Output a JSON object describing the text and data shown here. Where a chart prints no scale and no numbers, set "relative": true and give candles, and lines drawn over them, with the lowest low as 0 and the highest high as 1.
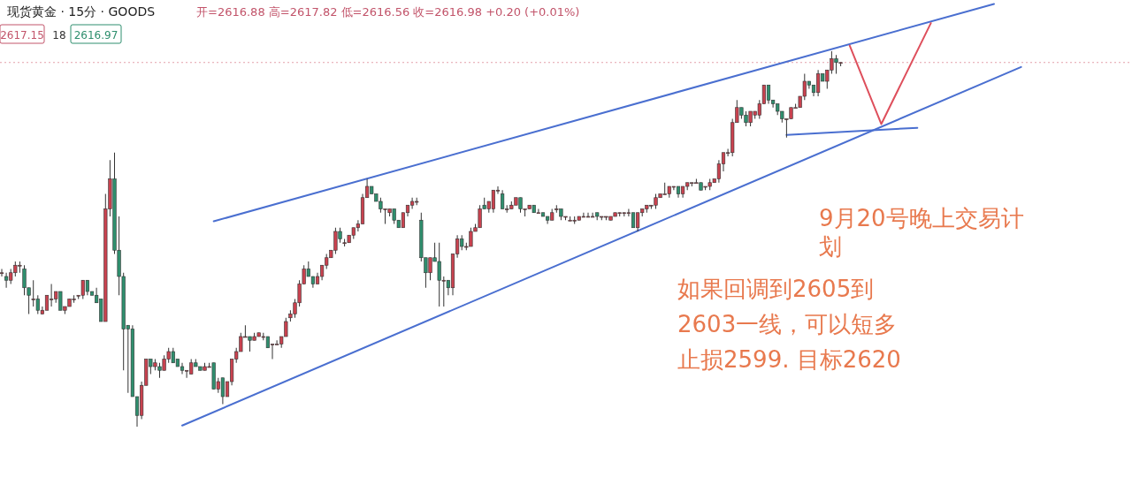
{
  "chart_data": {
    "type": "candlestick",
    "title": "现货黄金 · 15分 · GOODS",
    "subtitle": "开=2616.88 高=2617.82 低=2616.56 收=2616.98 +0.20 (+0.01%)",
    "annotations": [
      "2617.15",
      "18",
      "2616.97",
      "9月20号晚上交易计划",
      "如果回调到2605到2603一线，可以短多止损2599. 目标2620"
    ],
    "relative": true,
    "colors": [
      "#c9424f",
      "#2f8f6e",
      "#c9424f",
      "#c9424f",
      "#c9424f",
      "#2f8f6e",
      "#2f8f6e",
      "#c9424f",
      "#2f8f6e",
      "#c9424f",
      "#c9424f",
      "#c9424f",
      "#c9424f",
      "#2f8f6e",
      "#c9424f",
      "#c9424f",
      "#c9424f",
      "#c9424f",
      "#c9424f",
      "#2f8f6e",
      "#2f8f6e",
      "#2f8f6e",
      "#2f8f6e",
      "#c9424f",
      "#c9424f",
      "#2f8f6e",
      "#2f8f6e",
      "#2f8f6e",
      "#2f8f6e",
      "#2f8f6e",
      "#2f8f6e",
      "#c9424f",
      "#c9424f",
      "#2f8f6e",
      "#c9424f",
      "#2f8f6e",
      "#c9424f",
      "#c9424f",
      "#2f8f6e",
      "#2f8f6e",
      "#2f8f6e",
      "#c9424f",
      "#c9424f",
      "#2f8f6e",
      "#2f8f6e",
      "#c9424f",
      "#c9424f",
      "#2f8f6e",
      "#c9424f",
      "#2f8f6e",
      "#c9424f",
      "#c9424f",
      "#c9424f",
      "#c9424f",
      "#c9424f",
      "#2f8f6e",
      "#c9424f",
      "#c9424f",
      "#c9424f",
      "#2f8f6e",
      "#c9424f",
      "#c9424f",
      "#c9424f",
      "#c9424f",
      "#c9424f",
      "#c9424f",
      "#c9424f",
      "#c9424f",
      "#2f8f6e",
      "#2f8f6e",
      "#c9424f",
      "#c9424f",
      "#c9424f",
      "#c9424f",
      "#c9424f",
      "#2f8f6e",
      "#c9424f",
      "#c9424f",
      "#c9424f",
      "#c9424f",
      "#c9424f",
      "#c9424f",
      "#2f8f6e",
      "#2f8f6e",
      "#2f8f6e",
      "#c9424f",
      "#c9424f",
      "#2f8f6e",
      "#2f8f6e",
      "#c9424f",
      "#c9424f",
      "#c9424f",
      "#c9424f",
      "#2f8f6e",
      "#2f8f6e",
      "#c9424f",
      "#2f8f6e",
      "#2f8f6e",
      "#c9424f",
      "#2f8f6e",
      "#c9424f",
      "#c9424f",
      "#2f8f6e",
      "#c9424f",
      "#c9424f",
      "#c9424f",
      "#c9424f",
      "#2f8f6e",
      "#c9424f",
      "#c9424f",
      "#c9424f",
      "#2f8f6e",
      "#c9424f",
      "#c9424f",
      "#c9424f",
      "#2f8f6e",
      "#c9424f",
      "#c9424f",
      "#2f8f6e",
      "#c9424f",
      "#2f8f6e",
      "#2f8f6e",
      "#c9424f",
      "#c9424f",
      "#2f8f6e",
      "#c9424f",
      "#c9424f",
      "#c9424f",
      "#c9424f",
      "#c9424f",
      "#c9424f",
      "#c9424f",
      "#2f8f6e",
      "#c9424f",
      "#c9424f",
      "#c9424f",
      "#c9424f",
      "#c9424f",
      "#c9424f",
      "#c9424f",
      "#2f8f6e",
      "#c9424f",
      "#c9424f",
      "#c9424f",
      "#c9424f",
      "#c9424f",
      "#c9424f",
      "#c9424f",
      "#c9424f",
      "#c9424f",
      "#2f8f6e",
      "#c9424f",
      "#c9424f",
      "#c9424f",
      "#c9424f",
      "#2f8f6e",
      "#c9424f",
      "#c9424f",
      "#c9424f",
      "#c9424f",
      "#c9424f",
      "#c9424f",
      "#c9424f",
      "#c9424f",
      "#2f8f6e",
      "#2f8f6e",
      "#c9424f",
      "#c9424f",
      "#c9424f",
      "#c9424f",
      "#2f8f6e",
      "#2f8f6e",
      "#2f8f6e",
      "#2f8f6e",
      "#c9424f",
      "#c9424f",
      "#c9424f",
      "#c9424f",
      "#c9424f",
      "#2f8f6e",
      "#2f8f6e",
      "#c9424f",
      "#2f8f6e",
      "#c9424f",
      "#c9424f",
      "#2f8f6e",
      "#c9424f",
      null,
      null,
      null,
      null,
      null,
      null,
      null,
      null,
      null,
      null,
      null,
      null,
      null,
      null,
      null,
      null,
      null,
      null,
      null,
      null,
      null,
      null,
      null,
      null,
      null,
      null,
      null,
      null,
      null,
      null,
      null,
      null,
      null,
      null,
      null,
      null,
      null,
      null,
      null,
      null,
      null
    ],
    "categories": [
      null,
      null,
      null,
      null,
      null,
      null,
      null,
      null,
      null,
      null,
      null,
      null,
      null,
      null,
      null,
      null,
      null,
      null,
      null,
      null,
      null,
      null,
      null,
      null,
      null,
      null,
      null,
      null,
      null,
      null,
      null,
      null,
      null,
      null,
      null,
      null,
      null,
      null,
      null,
      null,
      null,
      null,
      null,
      null,
      null,
      null,
      null,
      null,
      null,
      null,
      null,
      null,
      null,
      null,
      null,
      null,
      null,
      null,
      null,
      null,
      null,
      null,
      null,
      null,
      null,
      null,
      null,
      null,
      null,
      null,
      null,
      null,
      null,
      null,
      null,
      null,
      null,
      null,
      null,
      null,
      null,
      null,
      null,
      null,
      null,
      null,
      null,
      null,
      null,
      null,
      null,
      null,
      null,
      null,
      null,
      null,
      null,
      null,
      null,
      null,
      null,
      null,
      null,
      null,
      null,
      null,
      null,
      null,
      null,
      null,
      null,
      null,
      null,
      null,
      null,
      null,
      null,
      null,
      null,
      null,
      null,
      null,
      null,
      null,
      null,
      null,
      null,
      null,
      null,
      null,
      null,
      null,
      null,
      null,
      null,
      null,
      null,
      null,
      null,
      null,
      null,
      null,
      null,
      null,
      null,
      null,
      null,
      null,
      null,
      null,
      null,
      null,
      null,
      null,
      null,
      null,
      null,
      null,
      null,
      null,
      null,
      null,
      null,
      null,
      null,
      null,
      null,
      null,
      null,
      null,
      null,
      null,
      null,
      null,
      null,
      null,
      null,
      null,
      null,
      null,
      null,
      null,
      null,
      null,
      null,
      null,
      null,
      null,
      null,
      null,
      null,
      null,
      null,
      null,
      null,
      null,
      null,
      null,
      null,
      null,
      null,
      null,
      null,
      null,
      null,
      null,
      null,
      null,
      null,
      null,
      null,
      null,
      null,
      null,
      null,
      null,
      null,
      null,
      null,
      null,
      null,
      null,
      null,
      null,
      null,
      null,
      null,
      null
    ],
    "ohlc": [
      [
        0.41,
        0.42,
        0.4,
        0.41
      ],
      [
        0.4,
        0.41,
        0.37,
        0.39
      ],
      [
        0.39,
        0.42,
        0.38,
        0.41
      ],
      [
        0.41,
        0.44,
        0.4,
        0.43
      ],
      [
        0.43,
        0.44,
        0.41,
        0.43
      ],
      [
        0.42,
        0.43,
        0.35,
        0.37
      ],
      [
        0.37,
        0.37,
        0.3,
        0.35
      ],
      [
        0.34,
        0.39,
        0.32,
        0.34
      ],
      [
        0.34,
        0.35,
        0.3,
        0.31
      ],
      [
        0.3,
        0.32,
        0.3,
        0.31
      ],
      [
        0.31,
        0.35,
        0.31,
        0.35
      ],
      [
        0.34,
        0.38,
        0.32,
        0.34
      ],
      [
        0.34,
        0.36,
        0.33,
        0.36
      ],
      [
        0.36,
        0.36,
        0.31,
        0.31
      ],
      [
        0.31,
        0.32,
        0.3,
        0.32
      ],
      [
        0.32,
        0.34,
        0.32,
        0.34
      ],
      [
        0.34,
        0.35,
        0.33,
        0.34
      ],
      [
        0.35,
        0.35,
        0.34,
        0.35
      ],
      [
        0.35,
        0.39,
        0.34,
        0.39
      ],
      [
        0.39,
        0.39,
        0.35,
        0.36
      ],
      [
        0.36,
        0.36,
        0.35,
        0.35
      ],
      [
        0.35,
        0.37,
        0.33,
        0.33
      ],
      [
        0.34,
        0.34,
        0.28,
        0.28
      ],
      [
        0.28,
        0.62,
        0.28,
        0.58
      ],
      [
        0.58,
        0.71,
        0.56,
        0.66
      ],
      [
        0.66,
        0.73,
        0.46,
        0.47
      ],
      [
        0.47,
        0.56,
        0.35,
        0.4
      ],
      [
        0.4,
        0.41,
        0.15,
        0.26
      ],
      [
        0.27,
        0.27,
        0.09,
        0.26
      ],
      [
        0.26,
        0.27,
        0.08,
        0.08
      ],
      [
        0.08,
        0.08,
        0.0,
        0.03
      ],
      [
        0.03,
        0.12,
        0.02,
        0.11
      ],
      [
        0.11,
        0.18,
        0.11,
        0.18
      ],
      [
        0.18,
        0.18,
        0.14,
        0.16
      ],
      [
        0.16,
        0.18,
        0.15,
        0.17
      ],
      [
        0.16,
        0.17,
        0.13,
        0.15
      ],
      [
        0.15,
        0.19,
        0.15,
        0.18
      ],
      [
        0.18,
        0.21,
        0.17,
        0.2
      ],
      [
        0.2,
        0.21,
        0.17,
        0.17
      ],
      [
        0.18,
        0.18,
        0.16,
        0.16
      ],
      [
        0.16,
        0.17,
        0.14,
        0.15
      ],
      [
        0.15,
        0.15,
        0.13,
        0.15
      ],
      [
        0.14,
        0.18,
        0.14,
        0.17
      ],
      [
        0.17,
        0.18,
        0.16,
        0.16
      ],
      [
        0.16,
        0.16,
        0.15,
        0.15
      ],
      [
        0.15,
        0.17,
        0.15,
        0.16
      ],
      [
        0.16,
        0.17,
        0.16,
        0.16
      ],
      [
        0.17,
        0.17,
        0.1,
        0.1
      ],
      [
        0.1,
        0.13,
        0.09,
        0.12
      ],
      [
        0.13,
        0.13,
        0.06,
        0.08
      ],
      [
        0.08,
        0.12,
        0.08,
        0.12
      ],
      [
        0.12,
        0.18,
        0.11,
        0.18
      ],
      [
        0.18,
        0.21,
        0.17,
        0.2
      ],
      [
        0.2,
        0.25,
        0.2,
        0.24
      ],
      [
        0.24,
        0.27,
        0.24,
        0.24
      ],
      [
        0.24,
        0.24,
        0.2,
        0.23
      ],
      [
        0.23,
        0.25,
        0.23,
        0.24
      ],
      [
        0.24,
        0.25,
        0.24,
        0.25
      ],
      [
        0.24,
        0.25,
        0.23,
        0.24
      ],
      [
        0.24,
        0.24,
        0.21,
        0.21
      ],
      [
        0.22,
        0.22,
        0.18,
        0.22
      ],
      [
        0.22,
        0.23,
        0.22,
        0.22
      ],
      [
        0.22,
        0.24,
        0.21,
        0.24
      ],
      [
        0.24,
        0.29,
        0.24,
        0.28
      ],
      [
        0.29,
        0.31,
        0.28,
        0.3
      ],
      [
        0.3,
        0.34,
        0.29,
        0.33
      ],
      [
        0.33,
        0.39,
        0.32,
        0.38
      ],
      [
        0.38,
        0.43,
        0.38,
        0.42
      ],
      [
        0.42,
        0.44,
        0.4,
        0.4
      ],
      [
        0.4,
        0.4,
        0.37,
        0.38
      ],
      [
        0.38,
        0.41,
        0.38,
        0.4
      ],
      [
        0.4,
        0.43,
        0.39,
        0.43
      ],
      [
        0.43,
        0.46,
        0.42,
        0.45
      ],
      [
        0.45,
        0.47,
        0.45,
        0.47
      ],
      [
        0.47,
        0.53,
        0.46,
        0.52
      ],
      [
        0.52,
        0.53,
        0.49,
        0.5
      ],
      [
        0.49,
        0.5,
        0.48,
        0.49
      ],
      [
        0.49,
        0.51,
        0.49,
        0.51
      ],
      [
        0.51,
        0.53,
        0.5,
        0.53
      ],
      [
        0.53,
        0.55,
        0.52,
        0.54
      ],
      [
        0.54,
        0.62,
        0.54,
        0.61
      ],
      [
        0.61,
        0.66,
        0.61,
        0.64
      ],
      [
        0.64,
        0.64,
        0.62,
        0.62
      ],
      [
        0.62,
        0.62,
        0.6,
        0.6
      ],
      [
        0.6,
        0.61,
        0.57,
        0.58
      ],
      [
        0.58,
        0.58,
        0.54,
        0.58
      ],
      [
        0.57,
        0.58,
        0.56,
        0.58
      ],
      [
        0.58,
        0.58,
        0.54,
        0.55
      ],
      [
        0.55,
        0.55,
        0.53,
        0.53
      ],
      [
        0.53,
        0.57,
        0.53,
        0.57
      ],
      [
        0.57,
        0.59,
        0.56,
        0.59
      ],
      [
        0.59,
        0.61,
        0.58,
        0.6
      ],
      [
        0.6,
        0.61,
        0.59,
        0.6
      ],
      [
        0.55,
        0.57,
        0.44,
        0.45
      ],
      [
        0.45,
        0.45,
        0.37,
        0.41
      ],
      [
        0.41,
        0.45,
        0.39,
        0.45
      ],
      [
        0.45,
        0.49,
        0.44,
        0.44
      ],
      [
        0.44,
        0.49,
        0.32,
        0.39
      ],
      [
        0.39,
        0.4,
        0.32,
        0.39
      ],
      [
        0.39,
        0.39,
        0.35,
        0.37
      ],
      [
        0.37,
        0.46,
        0.35,
        0.46
      ],
      [
        0.46,
        0.51,
        0.45,
        0.5
      ],
      [
        0.5,
        0.51,
        0.47,
        0.48
      ],
      [
        0.48,
        0.49,
        0.47,
        0.48
      ],
      [
        0.48,
        0.53,
        0.48,
        0.52
      ],
      [
        0.52,
        0.54,
        0.52,
        0.53
      ],
      [
        0.53,
        0.59,
        0.53,
        0.58
      ],
      [
        0.59,
        0.61,
        0.58,
        0.58
      ],
      [
        0.58,
        0.6,
        0.57,
        0.6
      ],
      [
        0.58,
        0.63,
        0.57,
        0.63
      ],
      [
        0.63,
        0.64,
        0.62,
        0.63
      ],
      [
        0.62,
        0.63,
        0.58,
        0.58
      ],
      [
        0.58,
        0.59,
        0.57,
        0.58
      ],
      [
        0.58,
        0.6,
        0.58,
        0.59
      ],
      [
        0.59,
        0.61,
        0.59,
        0.61
      ],
      [
        0.61,
        0.61,
        0.57,
        0.58
      ],
      [
        0.58,
        0.58,
        0.56,
        0.58
      ],
      [
        0.58,
        0.59,
        0.58,
        0.59
      ],
      [
        0.59,
        0.59,
        0.57,
        0.57
      ],
      [
        0.57,
        0.58,
        0.57,
        0.57
      ],
      [
        0.57,
        0.57,
        0.56,
        0.56
      ],
      [
        0.56,
        0.56,
        0.54,
        0.55
      ],
      [
        0.55,
        0.58,
        0.55,
        0.57
      ],
      [
        0.58,
        0.59,
        0.57,
        0.58
      ],
      [
        0.58,
        0.58,
        0.55,
        0.56
      ],
      [
        0.56,
        0.56,
        0.55,
        0.56
      ],
      [
        0.55,
        0.56,
        0.55,
        0.55
      ],
      [
        0.55,
        0.56,
        0.54,
        0.55
      ],
      [
        0.55,
        0.56,
        0.55,
        0.56
      ],
      [
        0.56,
        0.57,
        0.56,
        0.56
      ],
      [
        0.56,
        0.57,
        0.56,
        0.56
      ],
      [
        0.56,
        0.57,
        0.56,
        0.56
      ],
      [
        0.57,
        0.57,
        0.55,
        0.56
      ],
      [
        0.56,
        0.56,
        0.55,
        0.56
      ],
      [
        0.56,
        0.56,
        0.55,
        0.56
      ],
      [
        0.55,
        0.56,
        0.55,
        0.56
      ],
      [
        0.56,
        0.57,
        0.56,
        0.57
      ],
      [
        0.57,
        0.57,
        0.56,
        0.57
      ],
      [
        0.57,
        0.57,
        0.56,
        0.57
      ],
      [
        0.57,
        0.58,
        0.56,
        0.57
      ],
      [
        0.57,
        0.57,
        0.53,
        0.53
      ],
      [
        0.53,
        0.57,
        0.52,
        0.57
      ],
      [
        0.57,
        0.58,
        0.56,
        0.58
      ],
      [
        0.58,
        0.59,
        0.57,
        0.59
      ],
      [
        0.59,
        0.59,
        0.58,
        0.59
      ],
      [
        0.59,
        0.62,
        0.58,
        0.61
      ],
      [
        0.61,
        0.62,
        0.61,
        0.62
      ],
      [
        0.62,
        0.65,
        0.62,
        0.62
      ],
      [
        0.62,
        0.64,
        0.61,
        0.64
      ],
      [
        0.64,
        0.64,
        0.63,
        0.64
      ],
      [
        0.64,
        0.64,
        0.61,
        0.62
      ],
      [
        0.62,
        0.64,
        0.61,
        0.64
      ],
      [
        0.64,
        0.65,
        0.63,
        0.65
      ],
      [
        0.65,
        0.65,
        0.64,
        0.65
      ],
      [
        0.65,
        0.66,
        0.65,
        0.65
      ],
      [
        0.65,
        0.65,
        0.63,
        0.63
      ],
      [
        0.64,
        0.64,
        0.63,
        0.64
      ],
      [
        0.64,
        0.66,
        0.63,
        0.65
      ],
      [
        0.65,
        0.66,
        0.65,
        0.66
      ],
      [
        0.66,
        0.71,
        0.65,
        0.7
      ],
      [
        0.7,
        0.73,
        0.68,
        0.73
      ],
      [
        0.73,
        0.74,
        0.72,
        0.73
      ],
      [
        0.73,
        0.82,
        0.72,
        0.81
      ],
      [
        0.81,
        0.87,
        0.81,
        0.85
      ],
      [
        0.85,
        0.85,
        0.82,
        0.83
      ],
      [
        0.83,
        0.84,
        0.8,
        0.81
      ],
      [
        0.81,
        0.84,
        0.8,
        0.84
      ],
      [
        0.83,
        0.84,
        0.82,
        0.84
      ],
      [
        0.83,
        0.87,
        0.82,
        0.86
      ],
      [
        0.86,
        0.91,
        0.86,
        0.91
      ],
      [
        0.91,
        0.91,
        0.86,
        0.87
      ],
      [
        0.87,
        0.87,
        0.85,
        0.86
      ],
      [
        0.86,
        0.86,
        0.83,
        0.84
      ],
      [
        0.84,
        0.84,
        0.81,
        0.82
      ],
      [
        0.82,
        0.82,
        0.77,
        0.82
      ],
      [
        0.82,
        0.85,
        0.82,
        0.85
      ],
      [
        0.85,
        0.86,
        0.85,
        0.85
      ],
      [
        0.85,
        0.88,
        0.85,
        0.88
      ],
      [
        0.88,
        0.94,
        0.87,
        0.92
      ],
      [
        0.92,
        0.92,
        0.9,
        0.91
      ],
      [
        0.91,
        0.91,
        0.88,
        0.89
      ],
      [
        0.89,
        0.95,
        0.88,
        0.94
      ],
      [
        0.94,
        0.94,
        0.92,
        0.92
      ],
      [
        0.92,
        0.95,
        0.9,
        0.95
      ],
      [
        0.95,
        1.0,
        0.94,
        0.98
      ],
      [
        0.98,
        0.99,
        0.94,
        0.97
      ],
      [
        0.97,
        0.97,
        0.96,
        0.97
      ],
      null,
      null,
      null,
      null,
      null,
      null,
      null,
      null,
      null,
      null,
      null,
      null,
      null,
      null,
      null,
      null,
      null,
      null,
      null,
      null,
      null,
      null,
      null,
      null,
      null,
      null,
      null,
      null,
      null,
      null,
      null,
      null,
      null,
      null,
      null,
      null,
      null,
      null,
      null,
      null,
      null
    ],
    "series": [
      {
        "type": "line",
        "color": "#4a6fd0",
        "values": [
          null,
          null,
          null,
          null,
          null,
          null,
          null,
          null,
          null,
          null,
          null,
          null,
          null,
          null,
          null,
          null,
          null,
          null,
          null,
          null,
          null,
          null,
          null,
          null,
          null,
          null,
          null,
          null,
          null,
          null,
          null,
          null,
          null,
          null,
          null,
          null,
          null,
          null,
          null,
          null,
          null,
          null,
          null,
          null,
          null,
          null,
          null,
          0.547,
          null,
          null,
          null,
          null,
          null,
          null,
          null,
          null,
          null,
          null,
          null,
          null,
          null,
          null,
          null,
          null,
          null,
          null,
          null,
          null,
          null,
          null,
          null,
          null,
          null,
          null,
          null,
          null,
          null,
          null,
          null,
          null,
          null,
          null,
          null,
          null,
          null,
          null,
          null,
          null,
          null,
          null,
          null,
          null,
          null,
          null,
          null,
          null,
          null,
          null,
          null,
          null,
          null,
          null,
          null,
          null,
          null,
          null,
          null,
          null,
          null,
          null,
          null,
          null,
          null,
          null,
          null,
          null,
          null,
          null,
          null,
          null,
          null,
          null,
          null,
          null,
          null,
          null,
          null,
          null,
          null,
          null,
          null,
          null,
          null,
          null,
          null,
          null,
          null,
          null,
          null,
          null,
          null,
          null,
          null,
          null,
          null,
          null,
          null,
          null,
          null,
          null,
          null,
          null,
          null,
          null,
          null,
          null,
          null,
          null,
          null,
          null,
          null,
          null,
          null,
          null,
          null,
          null,
          null,
          null,
          null,
          null,
          null,
          null,
          null,
          null,
          null,
          null,
          null,
          null,
          null,
          null,
          null,
          null,
          null,
          null,
          null,
          null,
          null,
          null,
          null,
          null,
          null,
          null,
          null,
          null,
          null,
          null,
          null,
          null,
          null,
          null,
          null,
          null,
          null,
          null,
          null,
          null,
          null,
          null,
          null,
          null,
          null,
          null,
          null,
          null,
          null,
          null,
          null,
          null,
          null,
          null,
          1.126,
          null,
          null,
          null,
          null,
          null,
          null,
          null
        ]
      },
      {
        "type": "line",
        "color": "#4a6fd0",
        "values": [
          null,
          null,
          null,
          null,
          null,
          null,
          null,
          null,
          null,
          null,
          null,
          null,
          null,
          null,
          null,
          null,
          null,
          null,
          null,
          null,
          null,
          null,
          null,
          null,
          null,
          null,
          null,
          null,
          null,
          null,
          null,
          null,
          null,
          null,
          null,
          null,
          null,
          null,
          null,
          null,
          0.003,
          null,
          null,
          null,
          null,
          null,
          null,
          null,
          null,
          null,
          null,
          null,
          null,
          null,
          null,
          null,
          null,
          null,
          null,
          null,
          null,
          null,
          null,
          null,
          null,
          null,
          null,
          null,
          null,
          null,
          null,
          null,
          null,
          null,
          null,
          null,
          null,
          null,
          null,
          null,
          null,
          null,
          null,
          null,
          null,
          null,
          null,
          null,
          null,
          null,
          null,
          null,
          null,
          null,
          null,
          null,
          null,
          null,
          null,
          null,
          null,
          null,
          null,
          null,
          null,
          null,
          null,
          null,
          null,
          null,
          null,
          null,
          null,
          null,
          null,
          null,
          null,
          null,
          null,
          null,
          null,
          null,
          null,
          null,
          null,
          null,
          null,
          null,
          null,
          null,
          null,
          null,
          null,
          null,
          null,
          null,
          null,
          null,
          null,
          null,
          null,
          null,
          null,
          null,
          null,
          null,
          null,
          null,
          null,
          null,
          null,
          null,
          null,
          null,
          null,
          null,
          null,
          null,
          null,
          null,
          null,
          null,
          null,
          null,
          null,
          null,
          null,
          null,
          null,
          null,
          null,
          null,
          null,
          null,
          null,
          null,
          null,
          null,
          null,
          null,
          null,
          null,
          null,
          null,
          null,
          null,
          null,
          null,
          null,
          null,
          null,
          null,
          null,
          null,
          null,
          null,
          null,
          null,
          null,
          null,
          null,
          null,
          null,
          null,
          null,
          null,
          null,
          null,
          null,
          null,
          null,
          null,
          null,
          null,
          null,
          null,
          null,
          null,
          null,
          null,
          null,
          null,
          null,
          null,
          null,
          null,
          0.958,
          null
        ]
      },
      {
        "type": "line",
        "color": "#4a6fd0",
        "values": [
          null,
          null,
          null,
          null,
          null,
          null,
          null,
          null,
          null,
          null,
          null,
          null,
          null,
          null,
          null,
          null,
          null,
          null,
          null,
          null,
          null,
          null,
          null,
          null,
          null,
          null,
          null,
          null,
          null,
          null,
          null,
          null,
          null,
          null,
          null,
          null,
          null,
          null,
          null,
          null,
          null,
          null,
          null,
          null,
          null,
          null,
          null,
          null,
          null,
          null,
          null,
          null,
          null,
          null,
          null,
          null,
          null,
          null,
          null,
          null,
          null,
          null,
          null,
          null,
          null,
          null,
          null,
          null,
          null,
          null,
          null,
          null,
          null,
          null,
          null,
          null,
          null,
          null,
          null,
          null,
          null,
          null,
          null,
          null,
          null,
          null,
          null,
          null,
          null,
          null,
          null,
          null,
          null,
          null,
          null,
          null,
          null,
          null,
          null,
          null,
          null,
          null,
          null,
          null,
          null,
          null,
          null,
          null,
          null,
          null,
          null,
          null,
          null,
          null,
          null,
          null,
          null,
          null,
          null,
          null,
          null,
          null,
          null,
          null,
          null,
          null,
          null,
          null,
          null,
          null,
          null,
          null,
          null,
          null,
          null,
          null,
          null,
          null,
          null,
          null,
          null,
          null,
          null,
          null,
          null,
          null,
          null,
          null,
          null,
          null,
          null,
          null,
          null,
          null,
          null,
          null,
          null,
          null,
          null,
          null,
          null,
          null,
          null,
          null,
          null,
          null,
          null,
          null,
          null,
          null,
          null,
          null,
          null,
          null,
          0.777,
          null,
          null,
          null,
          null,
          null,
          null,
          null,
          null,
          null,
          null,
          null,
          null,
          null,
          null,
          null,
          null,
          null,
          null,
          null,
          null,
          null,
          null,
          null,
          null,
          null,
          null,
          null,
          null,
          0.796,
          null,
          null,
          null,
          null,
          null,
          null,
          null,
          null,
          null,
          null,
          null,
          null,
          null,
          null,
          null,
          null,
          null,
          null,
          null,
          null,
          null,
          null,
          null,
          null
        ]
      },
      {
        "type": "line",
        "color": "#de4f5c",
        "values": [
          null,
          null,
          null,
          null,
          null,
          null,
          null,
          null,
          null,
          null,
          null,
          null,
          null,
          null,
          null,
          null,
          null,
          null,
          null,
          null,
          null,
          null,
          null,
          null,
          null,
          null,
          null,
          null,
          null,
          null,
          null,
          null,
          null,
          null,
          null,
          null,
          null,
          null,
          null,
          null,
          null,
          null,
          null,
          null,
          null,
          null,
          null,
          null,
          null,
          null,
          null,
          null,
          null,
          null,
          null,
          null,
          null,
          null,
          null,
          null,
          null,
          null,
          null,
          null,
          null,
          null,
          null,
          null,
          null,
          null,
          null,
          null,
          null,
          null,
          null,
          null,
          null,
          null,
          null,
          null,
          null,
          null,
          null,
          null,
          null,
          null,
          null,
          null,
          null,
          null,
          null,
          null,
          null,
          null,
          null,
          null,
          null,
          null,
          null,
          null,
          null,
          null,
          null,
          null,
          null,
          null,
          null,
          null,
          null,
          null,
          null,
          null,
          null,
          null,
          null,
          null,
          null,
          null,
          null,
          null,
          null,
          null,
          null,
          null,
          null,
          null,
          null,
          null,
          null,
          null,
          null,
          null,
          null,
          null,
          null,
          null,
          null,
          null,
          null,
          null,
          null,
          null,
          null,
          null,
          null,
          null,
          null,
          null,
          null,
          null,
          null,
          null,
          null,
          null,
          null,
          null,
          null,
          null,
          null,
          null,
          null,
          null,
          null,
          null,
          null,
          null,
          null,
          null,
          null,
          null,
          null,
          null,
          null,
          null,
          null,
          null,
          null,
          null,
          null,
          null,
          null,
          null,
          null,
          null,
          null,
          null,
          null,
          null,
          1.015,
          null,
          null,
          null,
          null,
          null,
          null,
          0.806,
          null,
          null,
          null,
          null,
          null,
          null,
          null,
          null,
          null,
          null,
          1.075,
          null,
          null,
          null,
          null,
          null,
          null,
          null,
          null,
          null,
          null,
          null,
          null,
          null,
          null,
          null,
          null,
          null,
          null,
          null,
          null,
          null
        ]
      }
    ],
    "ref_lines": [
      {
        "axis": "y",
        "value": 0.97,
        "color": "#e3a0aa",
        "line_style": "dotted"
      }
    ]
  }
}
